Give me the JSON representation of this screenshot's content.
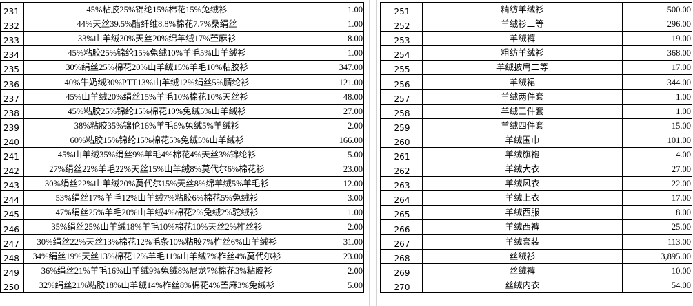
{
  "left_table": [
    {
      "no": "231",
      "desc": "45%粘胶25%锦纶15%棉花15%兔绒衫",
      "value": "1.00"
    },
    {
      "no": "232",
      "desc": "44%天丝39.5%醋纤维8.8%棉花7.7%桑绢丝",
      "value": "1.00"
    },
    {
      "no": "233",
      "desc": "33%山羊绒30%天丝20%绵羊绒17%苎麻衫",
      "value": "8.00"
    },
    {
      "no": "234",
      "desc": "45%粘胶25%锦纶15%兔绒10%羊毛5%山羊绒衫",
      "value": "1.00"
    },
    {
      "no": "235",
      "desc": "30%绢丝25%棉花20%山羊绒15%羊毛10%粘胶衫",
      "value": "347.00"
    },
    {
      "no": "236",
      "desc": "40%牛奶绒30%PTT13%山羊绒12%绢丝5%腈纶衫",
      "value": "121.00"
    },
    {
      "no": "237",
      "desc": "45%山羊绒20%绢丝15%羊毛10%棉花10%天丝衫",
      "value": "48.00"
    },
    {
      "no": "238",
      "desc": "45%粘胶25%锦纶15%棉花10%兔绒5%山羊绒衫",
      "value": "27.00"
    },
    {
      "no": "239",
      "desc": "38%粘胶35%锦伦16%羊毛6%兔绒5%羊绒衫",
      "value": "2.00"
    },
    {
      "no": "240",
      "desc": "60%粘胶15%锦纶15%棉花5%兔绒5%山羊绒衫",
      "value": "166.00"
    },
    {
      "no": "241",
      "desc": "45%山羊绒35%绢丝9%羊毛4%棉花4%天丝3%锦纶衫",
      "value": "5.00"
    },
    {
      "no": "242",
      "desc": "27%绢丝22%羊毛22%天丝15%山羊绒8%莫代尔6%棉花衫",
      "value": "23.00"
    },
    {
      "no": "243",
      "desc": "30%绢丝22%山羊绒20%莫代尔15%天丝8%绵羊绒5%羊毛衫",
      "value": "12.00"
    },
    {
      "no": "244",
      "desc": "53%绢丝17%羊毛12%山羊绒7%粘胶6%棉花5%兔绒衫",
      "value": "3.00"
    },
    {
      "no": "245",
      "desc": "47%绢丝25%羊毛20%山羊绒4%棉花2%兔绒2%驼绒衫",
      "value": "1.00"
    },
    {
      "no": "246",
      "desc": "35%绢丝25%山羊绒18%羊毛10%棉花10%天丝2%柞丝衫",
      "value": "2.00"
    },
    {
      "no": "247",
      "desc": "30%绢丝22%天丝13%棉花12%毛条10%粘胶7%柞丝6%山羊绒衫",
      "value": "31.00"
    },
    {
      "no": "248",
      "desc": "34%绢丝19%天丝13%棉花12%羊毛11%山羊绒7%柞丝4%莫代尔衫",
      "value": "23.00"
    },
    {
      "no": "249",
      "desc": "36%绢丝21%羊毛16%山羊绒9%兔绒8%尼龙7%棉花3%粘胶衫",
      "value": "2.00"
    },
    {
      "no": "250",
      "desc": "32%绢丝21%粘胶18%山羊绒14%柞丝8%棉花4%苎麻3%兔绒衫",
      "value": "5.00"
    }
  ],
  "right_table": [
    {
      "no": "251",
      "desc": "精纺羊绒衫",
      "value": "500.00"
    },
    {
      "no": "252",
      "desc": "羊绒衫二等",
      "value": "296.00"
    },
    {
      "no": "253",
      "desc": "羊绒裤",
      "value": "19.00"
    },
    {
      "no": "254",
      "desc": "粗纺羊绒衫",
      "value": "368.00"
    },
    {
      "no": "255",
      "desc": "羊绒披肩二等",
      "value": "17.00"
    },
    {
      "no": "256",
      "desc": "羊绒裙",
      "value": "344.00"
    },
    {
      "no": "257",
      "desc": "羊绒两件套",
      "value": "1.00"
    },
    {
      "no": "258",
      "desc": "羊绒三件套",
      "value": "1.00"
    },
    {
      "no": "259",
      "desc": "羊绒四件套",
      "value": "15.00"
    },
    {
      "no": "260",
      "desc": "羊绒围巾",
      "value": "101.00"
    },
    {
      "no": "261",
      "desc": "羊绒旗袍",
      "value": "4.00"
    },
    {
      "no": "262",
      "desc": "羊绒大衣",
      "value": "27.00"
    },
    {
      "no": "263",
      "desc": "羊绒风衣",
      "value": "22.00"
    },
    {
      "no": "264",
      "desc": "羊绒上衣",
      "value": "17.00"
    },
    {
      "no": "265",
      "desc": "羊绒西服",
      "value": "8.00"
    },
    {
      "no": "266",
      "desc": "羊绒西裤",
      "value": "25.00"
    },
    {
      "no": "267",
      "desc": "羊绒套装",
      "value": "113.00"
    },
    {
      "no": "268",
      "desc": "丝绒衫",
      "value": "3,895.00"
    },
    {
      "no": "269",
      "desc": "丝绒裤",
      "value": "10.00"
    },
    {
      "no": "270",
      "desc": "丝绒内衣",
      "value": "54.00"
    }
  ]
}
